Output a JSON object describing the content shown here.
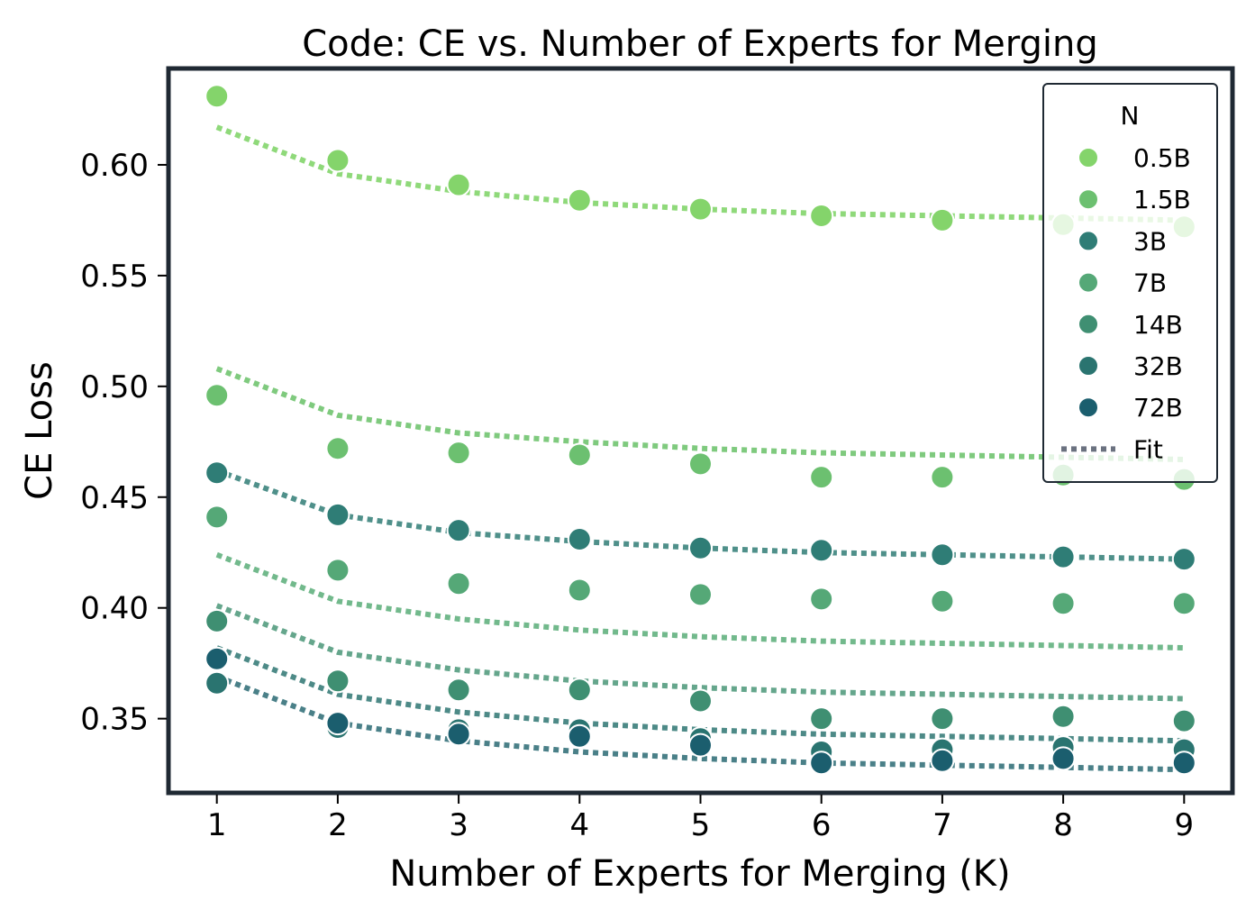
{
  "chart_data": {
    "type": "scatter",
    "title": "Code: CE vs. Number of Experts for Merging",
    "xlabel": "Number of Experts for Merging (K)",
    "ylabel": "CE Loss",
    "x": [
      1,
      2,
      3,
      4,
      5,
      6,
      7,
      8,
      9
    ],
    "xlim": [
      0.6,
      9.4
    ],
    "ylim": [
      0.3165,
      0.6435
    ],
    "xticks": [
      "1",
      "2",
      "3",
      "4",
      "5",
      "6",
      "7",
      "8",
      "9"
    ],
    "yticks": [
      0.35,
      0.4,
      0.45,
      0.5,
      0.55,
      0.6
    ],
    "ytick_labels": [
      "0.35",
      "0.40",
      "0.45",
      "0.50",
      "0.55",
      "0.60"
    ],
    "grid": false,
    "legend": {
      "title": "N",
      "position": "top-right",
      "fit_label": "Fit",
      "fit_color": "#6b7280"
    },
    "series": [
      {
        "name": "0.5B",
        "color": "#84d46b",
        "fit_color": "#8fd97a",
        "values": [
          0.631,
          0.602,
          0.591,
          0.584,
          0.58,
          0.577,
          0.575,
          0.573,
          0.572
        ],
        "fit": [
          0.617,
          0.596,
          0.588,
          0.583,
          0.58,
          0.578,
          0.577,
          0.576,
          0.575
        ]
      },
      {
        "name": "1.5B",
        "color": "#6cc070",
        "fit_color": "#7fca7e",
        "values": [
          0.496,
          0.472,
          0.47,
          0.469,
          0.465,
          0.459,
          0.459,
          0.46,
          0.458
        ],
        "fit": [
          0.508,
          0.487,
          0.479,
          0.475,
          0.472,
          0.47,
          0.469,
          0.468,
          0.467
        ]
      },
      {
        "name": "3B",
        "color": "#2f7d76",
        "fit_color": "#4f908a",
        "values": [
          0.461,
          0.442,
          0.435,
          0.431,
          0.427,
          0.426,
          0.424,
          0.423,
          0.422
        ],
        "fit": [
          0.462,
          0.442,
          0.434,
          0.43,
          0.427,
          0.425,
          0.424,
          0.423,
          0.422
        ]
      },
      {
        "name": "7B",
        "color": "#55a877",
        "fit_color": "#72b98c",
        "values": [
          0.441,
          0.417,
          0.411,
          0.408,
          0.406,
          0.404,
          0.403,
          0.402,
          0.402
        ],
        "fit": [
          0.424,
          0.403,
          0.395,
          0.39,
          0.387,
          0.385,
          0.384,
          0.383,
          0.382
        ]
      },
      {
        "name": "14B",
        "color": "#3f8f72",
        "fit_color": "#65a68c",
        "values": [
          0.394,
          0.367,
          0.363,
          0.363,
          0.358,
          0.35,
          0.35,
          0.351,
          0.349
        ],
        "fit": [
          0.401,
          0.38,
          0.372,
          0.367,
          0.364,
          0.362,
          0.361,
          0.36,
          0.359
        ]
      },
      {
        "name": "32B",
        "color": "#2a7470",
        "fit_color": "#4d8a87",
        "values": [
          0.366,
          0.346,
          0.345,
          0.345,
          0.341,
          0.335,
          0.336,
          0.337,
          0.336
        ],
        "fit": [
          0.382,
          0.361,
          0.353,
          0.348,
          0.345,
          0.343,
          0.342,
          0.341,
          0.34
        ]
      },
      {
        "name": "72B",
        "color": "#1b5e6e",
        "fit_color": "#4a8088",
        "values": [
          0.377,
          0.348,
          0.343,
          0.342,
          0.338,
          0.33,
          0.331,
          0.332,
          0.33
        ],
        "fit": [
          0.369,
          0.348,
          0.34,
          0.335,
          0.332,
          0.33,
          0.329,
          0.328,
          0.327
        ]
      }
    ]
  }
}
